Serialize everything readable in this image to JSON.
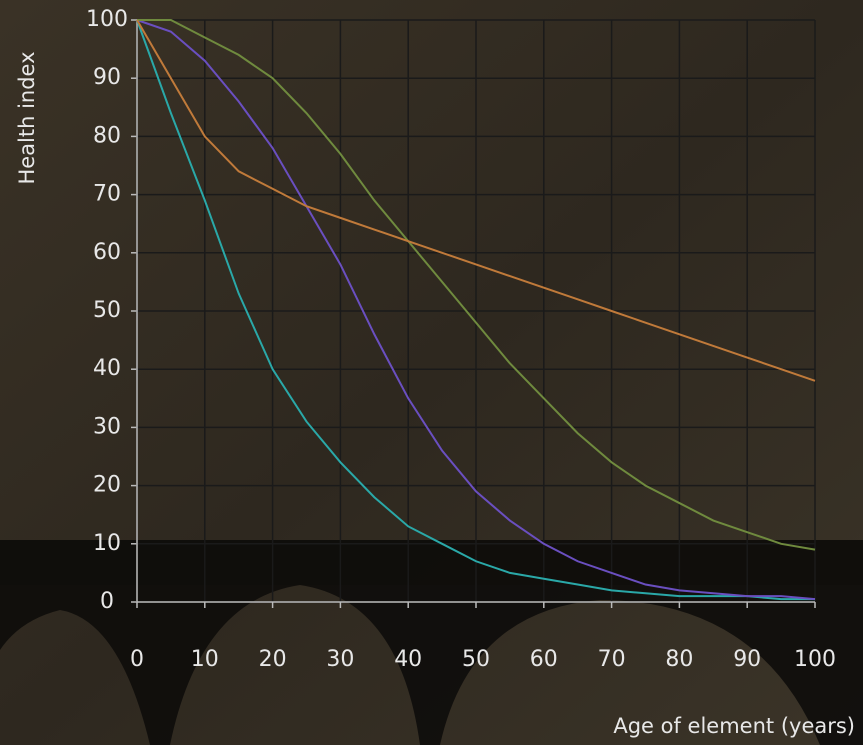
{
  "chart_data": {
    "type": "line",
    "y_label": "Health index",
    "x_label": "Age of element (years)",
    "x": [
      0,
      5,
      10,
      15,
      20,
      25,
      30,
      35,
      40,
      45,
      50,
      55,
      60,
      65,
      70,
      75,
      80,
      85,
      90,
      95,
      100
    ],
    "series": [
      {
        "color": "#2aa8a8",
        "values": [
          100,
          84,
          69,
          53,
          40,
          31,
          24,
          18,
          13,
          10,
          7,
          5,
          4,
          3,
          2,
          1.5,
          1,
          1,
          1,
          0.5,
          0.5
        ]
      },
      {
        "color": "#6a4fc0",
        "values": [
          100,
          98,
          93,
          86,
          78,
          68,
          58,
          46,
          35,
          26,
          19,
          14,
          10,
          7,
          5,
          3,
          2,
          1.5,
          1,
          1,
          0.5
        ]
      },
      {
        "color": "#6f8a3e",
        "values": [
          100,
          100,
          97,
          94,
          90,
          84,
          77,
          69,
          62,
          55,
          48,
          41,
          35,
          29,
          24,
          20,
          17,
          14,
          12,
          10,
          9
        ]
      },
      {
        "color": "#c07a3a",
        "values": [
          100,
          90,
          80,
          74,
          71,
          68,
          66,
          64,
          62,
          60,
          58,
          56,
          54,
          52,
          50,
          48,
          46,
          44,
          42,
          40,
          38
        ]
      }
    ],
    "xlim": [
      0,
      100
    ],
    "ylim": [
      0,
      100
    ],
    "xticks": [
      0,
      10,
      20,
      30,
      40,
      50,
      60,
      70,
      80,
      90,
      100
    ],
    "yticks": [
      0,
      10,
      20,
      30,
      40,
      50,
      60,
      70,
      80,
      90,
      100
    ],
    "grid": true
  }
}
